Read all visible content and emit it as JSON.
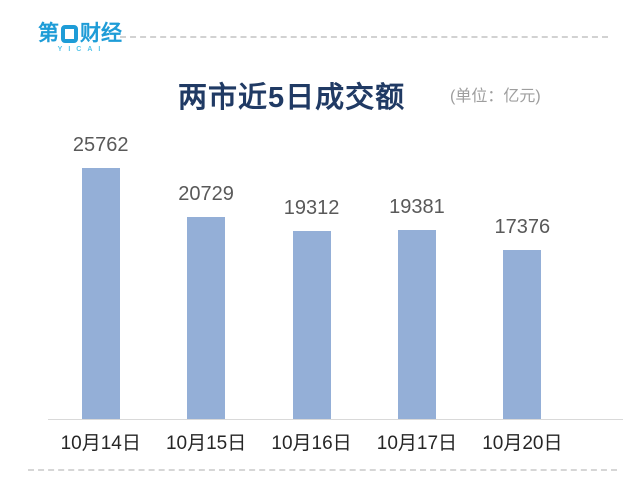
{
  "brand": {
    "logo_prefix": "第",
    "logo_suffix": "财经",
    "logo_sub": "YICAI",
    "logo_color": "#1E9CD7",
    "logo_sub_color": "#55C5EA"
  },
  "header": {
    "title": "两市近5日成交额",
    "unit": "(单位：亿元)"
  },
  "chart_data": {
    "type": "bar",
    "title": "两市近5日成交额",
    "unit_label": "(单位：亿元)",
    "categories": [
      "10月14日",
      "10月15日",
      "10月16日",
      "10月17日",
      "10月20日"
    ],
    "values": [
      25762,
      20729,
      19312,
      19381,
      17376
    ],
    "ylim": [
      0,
      25762
    ],
    "grid": false,
    "legend": false,
    "value_labels_shown": true,
    "bar_color": "#94AFD7",
    "value_label_color": "#595959",
    "axis_label_color": "#262626",
    "title_color": "#203A64",
    "axis_line_color": "#D9D9D9"
  }
}
